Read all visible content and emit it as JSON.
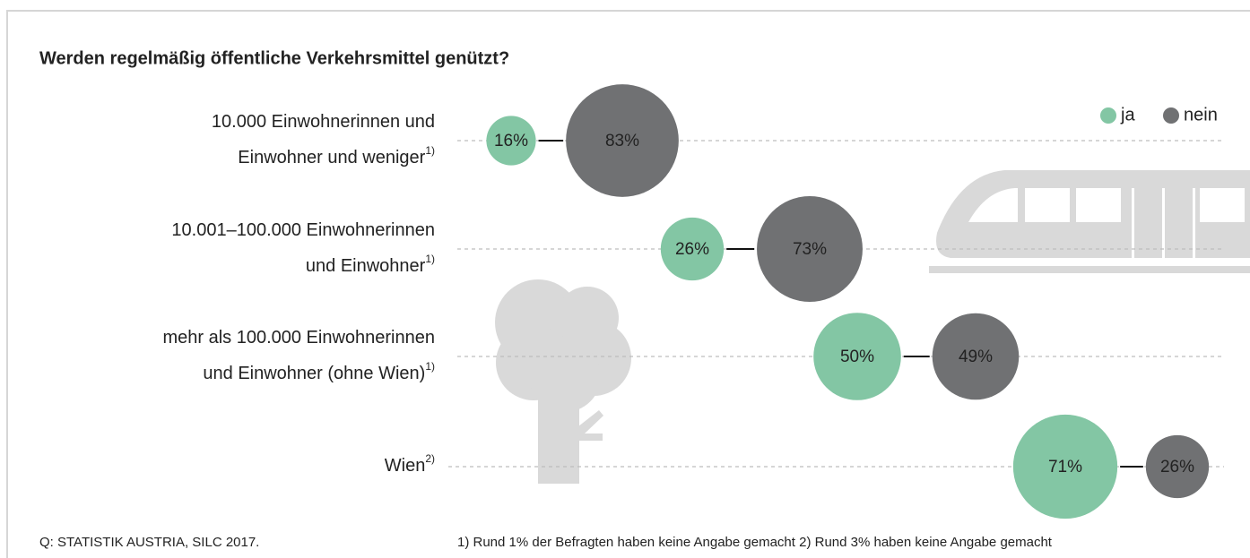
{
  "chart_data": {
    "type": "bubble-pairs",
    "title": "Werden regelmäßig öffentliche Verkehrsmittel genützt?",
    "categories": [
      [
        "10.000 Einwohnerinnen und",
        "Einwohner und weniger"
      ],
      [
        "10.001–100.000 Einwohnerinnen",
        "und Einwohner"
      ],
      [
        "mehr als 100.000 Einwohnerinnen",
        "und Einwohner (ohne Wien)"
      ],
      [
        "Wien"
      ]
    ],
    "category_notes": [
      "1)",
      "1)",
      "1)",
      "2)"
    ],
    "series": [
      {
        "name": "ja",
        "color": "#83c6a4",
        "values": [
          16,
          26,
          50,
          71
        ],
        "value_labels": [
          "16%",
          "26%",
          "50%",
          "71%"
        ]
      },
      {
        "name": "nein",
        "color": "#707173",
        "values": [
          83,
          73,
          49,
          26
        ],
        "value_labels": [
          "83%",
          "73%",
          "49%",
          "26%"
        ]
      }
    ],
    "legend": "top-right",
    "source": "Q: STATISTIK AUSTRIA, SILC 2017.",
    "footnote": "1) Rund 1% der Befragten haben keine Angabe gemacht 2) Rund 3% haben keine Angabe gemacht"
  }
}
